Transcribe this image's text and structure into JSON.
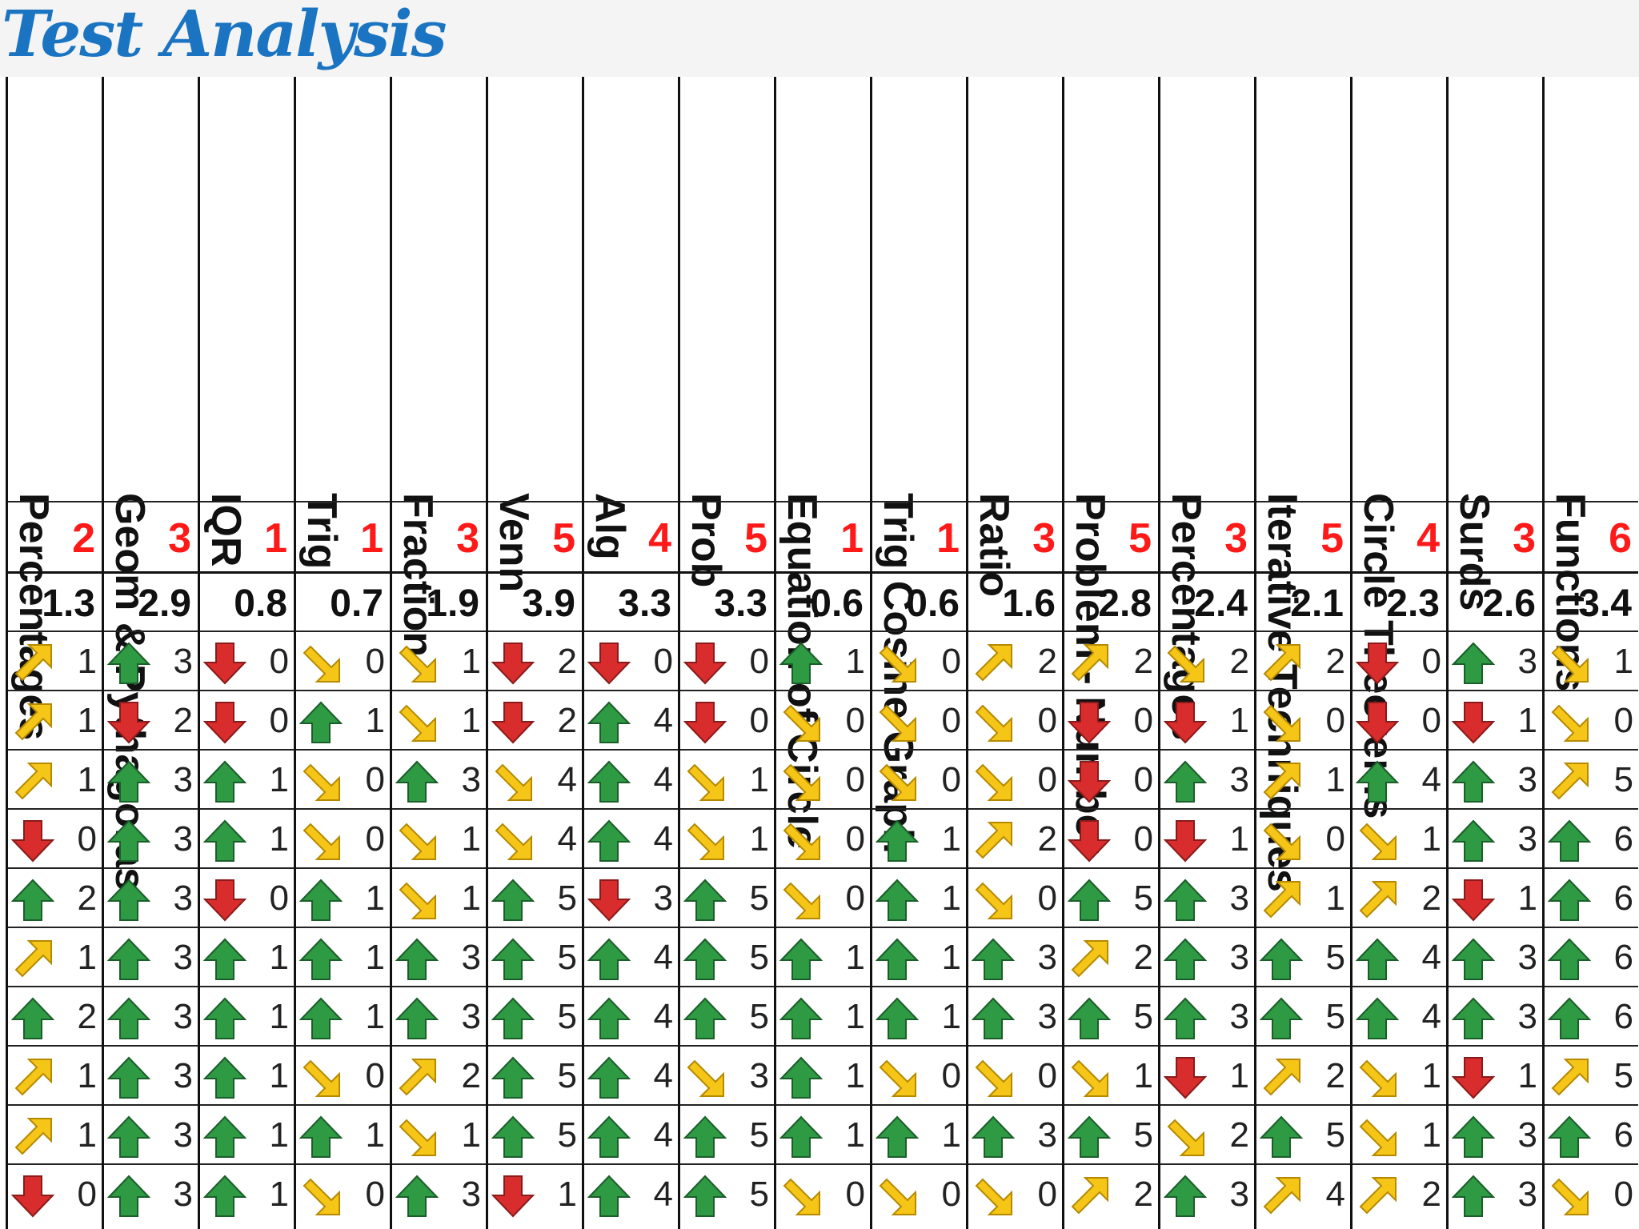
{
  "page_title": "Test Analysis",
  "colors": {
    "title": "#1a74c2",
    "max_marks": "#ff1a1a",
    "arrow_up": "#2e9a43",
    "arrow_down": "#d92d2d",
    "arrow_side": "#f5c518"
  },
  "table": {
    "topics": [
      "Percentages",
      "Geom & Pythagoras",
      "IQR",
      "Trig",
      "Fraction",
      "Venn",
      "Alg",
      "Prob",
      "Equation of Circle",
      "Trig Cosine Graph",
      "Ratio",
      "Problem - Number",
      "Percentages",
      "Iterative Techniques",
      "Circle Theorems",
      "Surds",
      "Functions"
    ],
    "max_marks": [
      "2",
      "3",
      "1",
      "1",
      "3",
      "5",
      "4",
      "5",
      "1",
      "1",
      "3",
      "5",
      "3",
      "5",
      "4",
      "3",
      "6"
    ],
    "averages": [
      "1.3",
      "2.9",
      "0.8",
      "0.7",
      "1.9",
      "3.9",
      "3.3",
      "3.3",
      "0.6",
      "0.6",
      "1.6",
      "2.8",
      "2.4",
      "2.1",
      "2.3",
      "2.6",
      "3.4"
    ],
    "rows": [
      [
        {
          "icon": "arrow-up-right-yellow-icon",
          "value": "1"
        },
        {
          "icon": "arrow-up-green-icon",
          "value": "3"
        },
        {
          "icon": "arrow-down-red-icon",
          "value": "0"
        },
        {
          "icon": "arrow-down-right-yellow-icon",
          "value": "0"
        },
        {
          "icon": "arrow-down-right-yellow-icon",
          "value": "1"
        },
        {
          "icon": "arrow-down-red-icon",
          "value": "2"
        },
        {
          "icon": "arrow-down-red-icon",
          "value": "0"
        },
        {
          "icon": "arrow-down-red-icon",
          "value": "0"
        },
        {
          "icon": "arrow-up-green-icon",
          "value": "1"
        },
        {
          "icon": "arrow-down-right-yellow-icon",
          "value": "0"
        },
        {
          "icon": "arrow-up-right-yellow-icon",
          "value": "2"
        },
        {
          "icon": "arrow-up-right-yellow-icon",
          "value": "2"
        },
        {
          "icon": "arrow-down-right-yellow-icon",
          "value": "2"
        },
        {
          "icon": "arrow-up-right-yellow-icon",
          "value": "2"
        },
        {
          "icon": "arrow-down-red-icon",
          "value": "0"
        },
        {
          "icon": "arrow-up-green-icon",
          "value": "3"
        },
        {
          "icon": "arrow-down-right-yellow-icon",
          "value": "1"
        }
      ],
      [
        {
          "icon": "arrow-up-right-yellow-icon",
          "value": "1"
        },
        {
          "icon": "arrow-down-red-icon",
          "value": "2"
        },
        {
          "icon": "arrow-down-red-icon",
          "value": "0"
        },
        {
          "icon": "arrow-up-green-icon",
          "value": "1"
        },
        {
          "icon": "arrow-down-right-yellow-icon",
          "value": "1"
        },
        {
          "icon": "arrow-down-red-icon",
          "value": "2"
        },
        {
          "icon": "arrow-up-green-icon",
          "value": "4"
        },
        {
          "icon": "arrow-down-red-icon",
          "value": "0"
        },
        {
          "icon": "arrow-down-right-yellow-icon",
          "value": "0"
        },
        {
          "icon": "arrow-down-right-yellow-icon",
          "value": "0"
        },
        {
          "icon": "arrow-down-right-yellow-icon",
          "value": "0"
        },
        {
          "icon": "arrow-down-red-icon",
          "value": "0"
        },
        {
          "icon": "arrow-down-red-icon",
          "value": "1"
        },
        {
          "icon": "arrow-down-right-yellow-icon",
          "value": "0"
        },
        {
          "icon": "arrow-down-red-icon",
          "value": "0"
        },
        {
          "icon": "arrow-down-red-icon",
          "value": "1"
        },
        {
          "icon": "arrow-down-right-yellow-icon",
          "value": "0"
        }
      ],
      [
        {
          "icon": "arrow-up-right-yellow-icon",
          "value": "1"
        },
        {
          "icon": "arrow-up-green-icon",
          "value": "3"
        },
        {
          "icon": "arrow-up-green-icon",
          "value": "1"
        },
        {
          "icon": "arrow-down-right-yellow-icon",
          "value": "0"
        },
        {
          "icon": "arrow-up-green-icon",
          "value": "3"
        },
        {
          "icon": "arrow-down-right-yellow-icon",
          "value": "4"
        },
        {
          "icon": "arrow-up-green-icon",
          "value": "4"
        },
        {
          "icon": "arrow-down-right-yellow-icon",
          "value": "1"
        },
        {
          "icon": "arrow-down-right-yellow-icon",
          "value": "0"
        },
        {
          "icon": "arrow-down-right-yellow-icon",
          "value": "0"
        },
        {
          "icon": "arrow-down-right-yellow-icon",
          "value": "0"
        },
        {
          "icon": "arrow-down-red-icon",
          "value": "0"
        },
        {
          "icon": "arrow-up-green-icon",
          "value": "3"
        },
        {
          "icon": "arrow-up-right-yellow-icon",
          "value": "1"
        },
        {
          "icon": "arrow-up-green-icon",
          "value": "4"
        },
        {
          "icon": "arrow-up-green-icon",
          "value": "3"
        },
        {
          "icon": "arrow-up-right-yellow-icon",
          "value": "5"
        }
      ],
      [
        {
          "icon": "arrow-down-red-icon",
          "value": "0"
        },
        {
          "icon": "arrow-up-green-icon",
          "value": "3"
        },
        {
          "icon": "arrow-up-green-icon",
          "value": "1"
        },
        {
          "icon": "arrow-down-right-yellow-icon",
          "value": "0"
        },
        {
          "icon": "arrow-down-right-yellow-icon",
          "value": "1"
        },
        {
          "icon": "arrow-down-right-yellow-icon",
          "value": "4"
        },
        {
          "icon": "arrow-up-green-icon",
          "value": "4"
        },
        {
          "icon": "arrow-down-right-yellow-icon",
          "value": "1"
        },
        {
          "icon": "arrow-down-right-yellow-icon",
          "value": "0"
        },
        {
          "icon": "arrow-up-green-icon",
          "value": "1"
        },
        {
          "icon": "arrow-up-right-yellow-icon",
          "value": "2"
        },
        {
          "icon": "arrow-down-red-icon",
          "value": "0"
        },
        {
          "icon": "arrow-down-red-icon",
          "value": "1"
        },
        {
          "icon": "arrow-down-right-yellow-icon",
          "value": "0"
        },
        {
          "icon": "arrow-down-right-yellow-icon",
          "value": "1"
        },
        {
          "icon": "arrow-up-green-icon",
          "value": "3"
        },
        {
          "icon": "arrow-up-green-icon",
          "value": "6"
        }
      ],
      [
        {
          "icon": "arrow-up-green-icon",
          "value": "2"
        },
        {
          "icon": "arrow-up-green-icon",
          "value": "3"
        },
        {
          "icon": "arrow-down-red-icon",
          "value": "0"
        },
        {
          "icon": "arrow-up-green-icon",
          "value": "1"
        },
        {
          "icon": "arrow-down-right-yellow-icon",
          "value": "1"
        },
        {
          "icon": "arrow-up-green-icon",
          "value": "5"
        },
        {
          "icon": "arrow-down-red-icon",
          "value": "3"
        },
        {
          "icon": "arrow-up-green-icon",
          "value": "5"
        },
        {
          "icon": "arrow-down-right-yellow-icon",
          "value": "0"
        },
        {
          "icon": "arrow-up-green-icon",
          "value": "1"
        },
        {
          "icon": "arrow-down-right-yellow-icon",
          "value": "0"
        },
        {
          "icon": "arrow-up-green-icon",
          "value": "5"
        },
        {
          "icon": "arrow-up-green-icon",
          "value": "3"
        },
        {
          "icon": "arrow-up-right-yellow-icon",
          "value": "1"
        },
        {
          "icon": "arrow-up-right-yellow-icon",
          "value": "2"
        },
        {
          "icon": "arrow-down-red-icon",
          "value": "1"
        },
        {
          "icon": "arrow-up-green-icon",
          "value": "6"
        }
      ],
      [
        {
          "icon": "arrow-up-right-yellow-icon",
          "value": "1"
        },
        {
          "icon": "arrow-up-green-icon",
          "value": "3"
        },
        {
          "icon": "arrow-up-green-icon",
          "value": "1"
        },
        {
          "icon": "arrow-up-green-icon",
          "value": "1"
        },
        {
          "icon": "arrow-up-green-icon",
          "value": "3"
        },
        {
          "icon": "arrow-up-green-icon",
          "value": "5"
        },
        {
          "icon": "arrow-up-green-icon",
          "value": "4"
        },
        {
          "icon": "arrow-up-green-icon",
          "value": "5"
        },
        {
          "icon": "arrow-up-green-icon",
          "value": "1"
        },
        {
          "icon": "arrow-up-green-icon",
          "value": "1"
        },
        {
          "icon": "arrow-up-green-icon",
          "value": "3"
        },
        {
          "icon": "arrow-up-right-yellow-icon",
          "value": "2"
        },
        {
          "icon": "arrow-up-green-icon",
          "value": "3"
        },
        {
          "icon": "arrow-up-green-icon",
          "value": "5"
        },
        {
          "icon": "arrow-up-green-icon",
          "value": "4"
        },
        {
          "icon": "arrow-up-green-icon",
          "value": "3"
        },
        {
          "icon": "arrow-up-green-icon",
          "value": "6"
        }
      ],
      [
        {
          "icon": "arrow-up-green-icon",
          "value": "2"
        },
        {
          "icon": "arrow-up-green-icon",
          "value": "3"
        },
        {
          "icon": "arrow-up-green-icon",
          "value": "1"
        },
        {
          "icon": "arrow-up-green-icon",
          "value": "1"
        },
        {
          "icon": "arrow-up-green-icon",
          "value": "3"
        },
        {
          "icon": "arrow-up-green-icon",
          "value": "5"
        },
        {
          "icon": "arrow-up-green-icon",
          "value": "4"
        },
        {
          "icon": "arrow-up-green-icon",
          "value": "5"
        },
        {
          "icon": "arrow-up-green-icon",
          "value": "1"
        },
        {
          "icon": "arrow-up-green-icon",
          "value": "1"
        },
        {
          "icon": "arrow-up-green-icon",
          "value": "3"
        },
        {
          "icon": "arrow-up-green-icon",
          "value": "5"
        },
        {
          "icon": "arrow-up-green-icon",
          "value": "3"
        },
        {
          "icon": "arrow-up-green-icon",
          "value": "5"
        },
        {
          "icon": "arrow-up-green-icon",
          "value": "4"
        },
        {
          "icon": "arrow-up-green-icon",
          "value": "3"
        },
        {
          "icon": "arrow-up-green-icon",
          "value": "6"
        }
      ],
      [
        {
          "icon": "arrow-up-right-yellow-icon",
          "value": "1"
        },
        {
          "icon": "arrow-up-green-icon",
          "value": "3"
        },
        {
          "icon": "arrow-up-green-icon",
          "value": "1"
        },
        {
          "icon": "arrow-down-right-yellow-icon",
          "value": "0"
        },
        {
          "icon": "arrow-up-right-yellow-icon",
          "value": "2"
        },
        {
          "icon": "arrow-up-green-icon",
          "value": "5"
        },
        {
          "icon": "arrow-up-green-icon",
          "value": "4"
        },
        {
          "icon": "arrow-down-right-yellow-icon",
          "value": "3"
        },
        {
          "icon": "arrow-up-green-icon",
          "value": "1"
        },
        {
          "icon": "arrow-down-right-yellow-icon",
          "value": "0"
        },
        {
          "icon": "arrow-down-right-yellow-icon",
          "value": "0"
        },
        {
          "icon": "arrow-down-right-yellow-icon",
          "value": "1"
        },
        {
          "icon": "arrow-down-red-icon",
          "value": "1"
        },
        {
          "icon": "arrow-up-right-yellow-icon",
          "value": "2"
        },
        {
          "icon": "arrow-down-right-yellow-icon",
          "value": "1"
        },
        {
          "icon": "arrow-down-red-icon",
          "value": "1"
        },
        {
          "icon": "arrow-up-right-yellow-icon",
          "value": "5"
        }
      ],
      [
        {
          "icon": "arrow-up-right-yellow-icon",
          "value": "1"
        },
        {
          "icon": "arrow-up-green-icon",
          "value": "3"
        },
        {
          "icon": "arrow-up-green-icon",
          "value": "1"
        },
        {
          "icon": "arrow-up-green-icon",
          "value": "1"
        },
        {
          "icon": "arrow-down-right-yellow-icon",
          "value": "1"
        },
        {
          "icon": "arrow-up-green-icon",
          "value": "5"
        },
        {
          "icon": "arrow-up-green-icon",
          "value": "4"
        },
        {
          "icon": "arrow-up-green-icon",
          "value": "5"
        },
        {
          "icon": "arrow-up-green-icon",
          "value": "1"
        },
        {
          "icon": "arrow-up-green-icon",
          "value": "1"
        },
        {
          "icon": "arrow-up-green-icon",
          "value": "3"
        },
        {
          "icon": "arrow-up-green-icon",
          "value": "5"
        },
        {
          "icon": "arrow-down-right-yellow-icon",
          "value": "2"
        },
        {
          "icon": "arrow-up-green-icon",
          "value": "5"
        },
        {
          "icon": "arrow-down-right-yellow-icon",
          "value": "1"
        },
        {
          "icon": "arrow-up-green-icon",
          "value": "3"
        },
        {
          "icon": "arrow-up-green-icon",
          "value": "6"
        }
      ],
      [
        {
          "icon": "arrow-down-red-icon",
          "value": "0"
        },
        {
          "icon": "arrow-up-green-icon",
          "value": "3"
        },
        {
          "icon": "arrow-up-green-icon",
          "value": "1"
        },
        {
          "icon": "arrow-down-right-yellow-icon",
          "value": "0"
        },
        {
          "icon": "arrow-up-green-icon",
          "value": "3"
        },
        {
          "icon": "arrow-down-red-icon",
          "value": "1"
        },
        {
          "icon": "arrow-up-green-icon",
          "value": "4"
        },
        {
          "icon": "arrow-up-green-icon",
          "value": "5"
        },
        {
          "icon": "arrow-down-right-yellow-icon",
          "value": "0"
        },
        {
          "icon": "arrow-down-right-yellow-icon",
          "value": "0"
        },
        {
          "icon": "arrow-down-right-yellow-icon",
          "value": "0"
        },
        {
          "icon": "arrow-up-right-yellow-icon",
          "value": "2"
        },
        {
          "icon": "arrow-up-green-icon",
          "value": "3"
        },
        {
          "icon": "arrow-up-right-yellow-icon",
          "value": "4"
        },
        {
          "icon": "arrow-up-right-yellow-icon",
          "value": "2"
        },
        {
          "icon": "arrow-up-green-icon",
          "value": "3"
        },
        {
          "icon": "arrow-down-right-yellow-icon",
          "value": "0"
        }
      ]
    ]
  }
}
